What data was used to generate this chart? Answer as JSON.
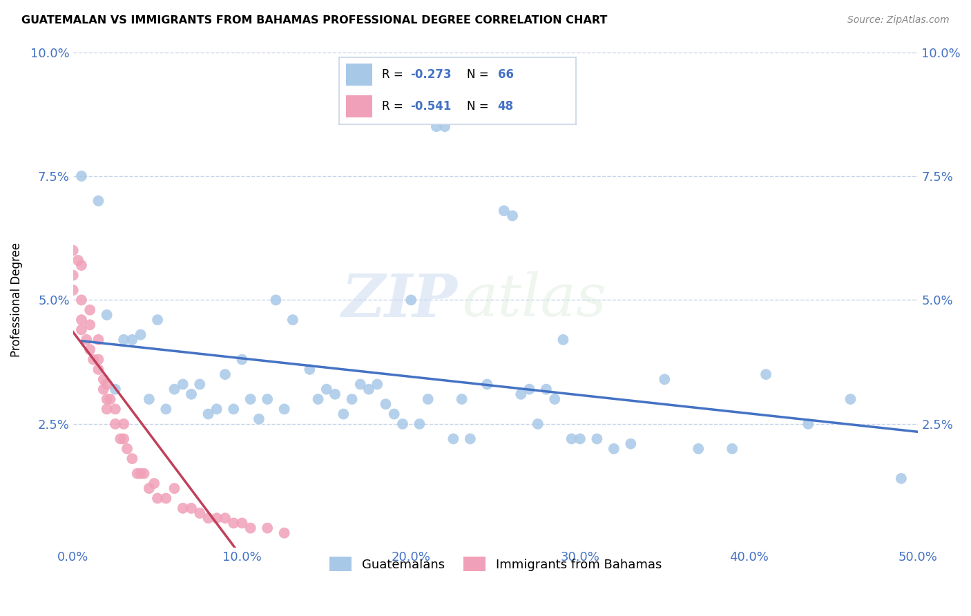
{
  "title": "GUATEMALAN VS IMMIGRANTS FROM BAHAMAS PROFESSIONAL DEGREE CORRELATION CHART",
  "source": "Source: ZipAtlas.com",
  "ylabel": "Professional Degree",
  "xlim": [
    0.0,
    0.5
  ],
  "ylim": [
    0.0,
    0.1
  ],
  "xticks": [
    0.0,
    0.1,
    0.2,
    0.3,
    0.4,
    0.5
  ],
  "yticks": [
    0.0,
    0.025,
    0.05,
    0.075,
    0.1
  ],
  "xtick_labels": [
    "0.0%",
    "10.0%",
    "20.0%",
    "30.0%",
    "40.0%",
    "50.0%"
  ],
  "ytick_labels": [
    "",
    "2.5%",
    "5.0%",
    "7.5%",
    "10.0%"
  ],
  "legend_labels": [
    "Guatemalans",
    "Immigrants from Bahamas"
  ],
  "legend_R": [
    -0.273,
    -0.541
  ],
  "legend_N": [
    66,
    48
  ],
  "blue_color": "#a8c8e8",
  "pink_color": "#f0a0b8",
  "blue_line_color": "#4472c4",
  "pink_line_color": "#c0405a",
  "text_color": "#4472c4",
  "grid_color": "#c8d4e8",
  "background_color": "#ffffff",
  "watermark_zip": "ZIP",
  "watermark_atlas": "atlas",
  "blue_x": [
    0.005,
    0.015,
    0.02,
    0.025,
    0.03,
    0.035,
    0.04,
    0.045,
    0.05,
    0.055,
    0.06,
    0.065,
    0.07,
    0.075,
    0.08,
    0.085,
    0.09,
    0.095,
    0.1,
    0.105,
    0.11,
    0.115,
    0.12,
    0.125,
    0.13,
    0.14,
    0.145,
    0.15,
    0.155,
    0.16,
    0.165,
    0.17,
    0.175,
    0.18,
    0.185,
    0.19,
    0.195,
    0.2,
    0.205,
    0.21,
    0.215,
    0.22,
    0.225,
    0.23,
    0.235,
    0.245,
    0.255,
    0.26,
    0.265,
    0.27,
    0.275,
    0.28,
    0.285,
    0.29,
    0.295,
    0.3,
    0.31,
    0.32,
    0.33,
    0.35,
    0.37,
    0.39,
    0.41,
    0.435,
    0.46,
    0.49
  ],
  "blue_y": [
    0.075,
    0.07,
    0.047,
    0.032,
    0.042,
    0.042,
    0.043,
    0.03,
    0.046,
    0.028,
    0.032,
    0.033,
    0.031,
    0.033,
    0.027,
    0.028,
    0.035,
    0.028,
    0.038,
    0.03,
    0.026,
    0.03,
    0.05,
    0.028,
    0.046,
    0.036,
    0.03,
    0.032,
    0.031,
    0.027,
    0.03,
    0.033,
    0.032,
    0.033,
    0.029,
    0.027,
    0.025,
    0.05,
    0.025,
    0.03,
    0.085,
    0.085,
    0.022,
    0.03,
    0.022,
    0.033,
    0.068,
    0.067,
    0.031,
    0.032,
    0.025,
    0.032,
    0.03,
    0.042,
    0.022,
    0.022,
    0.022,
    0.02,
    0.021,
    0.034,
    0.02,
    0.02,
    0.035,
    0.025,
    0.03,
    0.014
  ],
  "pink_x": [
    0.0,
    0.0,
    0.0,
    0.003,
    0.005,
    0.005,
    0.005,
    0.005,
    0.008,
    0.01,
    0.01,
    0.01,
    0.012,
    0.015,
    0.015,
    0.015,
    0.018,
    0.018,
    0.02,
    0.02,
    0.02,
    0.022,
    0.025,
    0.025,
    0.028,
    0.03,
    0.03,
    0.032,
    0.035,
    0.038,
    0.04,
    0.042,
    0.045,
    0.048,
    0.05,
    0.055,
    0.06,
    0.065,
    0.07,
    0.075,
    0.08,
    0.085,
    0.09,
    0.095,
    0.1,
    0.105,
    0.115,
    0.125
  ],
  "pink_y": [
    0.06,
    0.055,
    0.052,
    0.058,
    0.057,
    0.05,
    0.046,
    0.044,
    0.042,
    0.048,
    0.045,
    0.04,
    0.038,
    0.042,
    0.038,
    0.036,
    0.034,
    0.032,
    0.033,
    0.03,
    0.028,
    0.03,
    0.028,
    0.025,
    0.022,
    0.025,
    0.022,
    0.02,
    0.018,
    0.015,
    0.015,
    0.015,
    0.012,
    0.013,
    0.01,
    0.01,
    0.012,
    0.008,
    0.008,
    0.007,
    0.006,
    0.006,
    0.006,
    0.005,
    0.005,
    0.004,
    0.004,
    0.003
  ]
}
